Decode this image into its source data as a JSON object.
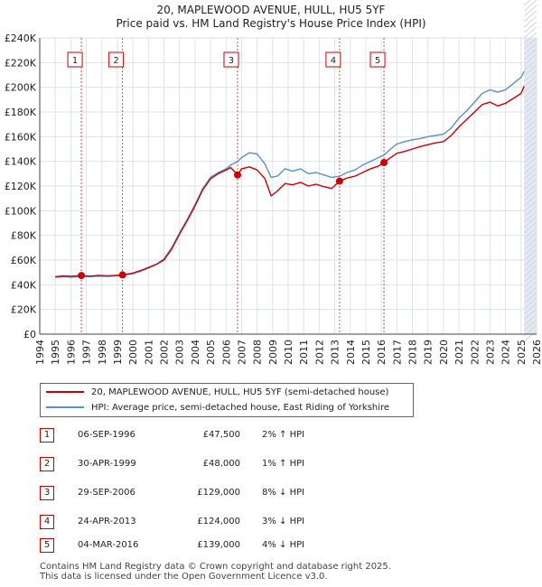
{
  "chart_data": {
    "type": "line",
    "title": "20, MAPLEWOOD AVENUE, HULL, HU5 5YF",
    "subtitle": "Price paid vs. HM Land Registry's House Price Index (HPI)",
    "xlim": [
      1994,
      2026
    ],
    "ylim": [
      0,
      240000
    ],
    "y_ticks": [
      {
        "value": 0,
        "label": "£0"
      },
      {
        "value": 20000,
        "label": "£20K"
      },
      {
        "value": 40000,
        "label": "£40K"
      },
      {
        "value": 60000,
        "label": "£60K"
      },
      {
        "value": 80000,
        "label": "£80K"
      },
      {
        "value": 100000,
        "label": "£100K"
      },
      {
        "value": 120000,
        "label": "£120K"
      },
      {
        "value": 140000,
        "label": "£140K"
      },
      {
        "value": 160000,
        "label": "£160K"
      },
      {
        "value": 180000,
        "label": "£180K"
      },
      {
        "value": 200000,
        "label": "£200K"
      },
      {
        "value": 220000,
        "label": "£220K"
      },
      {
        "value": 240000,
        "label": "£240K"
      }
    ],
    "x_ticks": [
      "1994",
      "1995",
      "1996",
      "1997",
      "1998",
      "1999",
      "2000",
      "2001",
      "2002",
      "2003",
      "2004",
      "2005",
      "2006",
      "2007",
      "2008",
      "2009",
      "2010",
      "2011",
      "2012",
      "2013",
      "2014",
      "2015",
      "2016",
      "2017",
      "2018",
      "2019",
      "2020",
      "2021",
      "2022",
      "2023",
      "2024",
      "2025",
      "2026"
    ],
    "grid": true,
    "series": [
      {
        "name": "20, MAPLEWOOD AVENUE, HULL, HU5 5YF (semi-detached house)",
        "color": "#cc0000",
        "points": [
          [
            1995.0,
            46500
          ],
          [
            1995.5,
            47200
          ],
          [
            1996.0,
            46800
          ],
          [
            1996.68,
            47500
          ],
          [
            1997.2,
            47000
          ],
          [
            1997.8,
            47600
          ],
          [
            1998.4,
            47300
          ],
          [
            1999.0,
            47700
          ],
          [
            1999.33,
            48000
          ],
          [
            2000.0,
            49500
          ],
          [
            2000.5,
            51500
          ],
          [
            2001.0,
            54000
          ],
          [
            2001.5,
            56500
          ],
          [
            2002.0,
            60000
          ],
          [
            2002.5,
            69000
          ],
          [
            2003.0,
            81000
          ],
          [
            2003.5,
            92000
          ],
          [
            2004.0,
            104000
          ],
          [
            2004.5,
            117000
          ],
          [
            2005.0,
            126000
          ],
          [
            2005.5,
            130000
          ],
          [
            2006.0,
            133000
          ],
          [
            2006.3,
            135000
          ],
          [
            2006.74,
            129000
          ],
          [
            2007.0,
            134000
          ],
          [
            2007.5,
            135500
          ],
          [
            2008.0,
            133000
          ],
          [
            2008.5,
            126000
          ],
          [
            2008.9,
            112000
          ],
          [
            2009.3,
            116000
          ],
          [
            2009.8,
            122000
          ],
          [
            2010.3,
            121000
          ],
          [
            2010.8,
            123000
          ],
          [
            2011.3,
            120000
          ],
          [
            2011.8,
            121500
          ],
          [
            2012.3,
            119500
          ],
          [
            2012.8,
            118000
          ],
          [
            2013.31,
            124000
          ],
          [
            2013.8,
            126500
          ],
          [
            2014.3,
            128000
          ],
          [
            2014.8,
            131000
          ],
          [
            2015.3,
            134000
          ],
          [
            2015.8,
            136000
          ],
          [
            2016.17,
            139000
          ],
          [
            2016.6,
            143000
          ],
          [
            2017.0,
            146500
          ],
          [
            2017.5,
            148000
          ],
          [
            2018.0,
            150000
          ],
          [
            2018.5,
            152000
          ],
          [
            2019.0,
            153500
          ],
          [
            2019.5,
            155000
          ],
          [
            2020.0,
            156000
          ],
          [
            2020.5,
            161000
          ],
          [
            2021.0,
            168000
          ],
          [
            2021.5,
            174000
          ],
          [
            2022.0,
            180000
          ],
          [
            2022.5,
            186000
          ],
          [
            2023.0,
            188000
          ],
          [
            2023.5,
            185000
          ],
          [
            2024.0,
            187000
          ],
          [
            2024.5,
            191000
          ],
          [
            2025.0,
            195000
          ],
          [
            2025.2,
            201000
          ]
        ]
      },
      {
        "name": "HPI: Average price, semi-detached house, East Riding of Yorkshire",
        "color": "#5b8fd0",
        "points": [
          [
            1995.0,
            46000
          ],
          [
            1995.5,
            46500
          ],
          [
            1996.0,
            46200
          ],
          [
            1996.68,
            46800
          ],
          [
            1997.2,
            46500
          ],
          [
            1997.8,
            47000
          ],
          [
            1998.4,
            46800
          ],
          [
            1999.0,
            47200
          ],
          [
            1999.33,
            47500
          ],
          [
            2000.0,
            49000
          ],
          [
            2000.5,
            51000
          ],
          [
            2001.0,
            53500
          ],
          [
            2001.5,
            56500
          ],
          [
            2002.0,
            61000
          ],
          [
            2002.5,
            70000
          ],
          [
            2003.0,
            82000
          ],
          [
            2003.5,
            93000
          ],
          [
            2004.0,
            105000
          ],
          [
            2004.5,
            118000
          ],
          [
            2005.0,
            127000
          ],
          [
            2005.5,
            131000
          ],
          [
            2006.0,
            134000
          ],
          [
            2006.3,
            137000
          ],
          [
            2006.74,
            140000
          ],
          [
            2007.0,
            143000
          ],
          [
            2007.5,
            147000
          ],
          [
            2008.0,
            146000
          ],
          [
            2008.5,
            138000
          ],
          [
            2008.9,
            127000
          ],
          [
            2009.3,
            128000
          ],
          [
            2009.8,
            134000
          ],
          [
            2010.3,
            132000
          ],
          [
            2010.8,
            134000
          ],
          [
            2011.3,
            130000
          ],
          [
            2011.8,
            131000
          ],
          [
            2012.3,
            129000
          ],
          [
            2012.8,
            127000
          ],
          [
            2013.31,
            128000
          ],
          [
            2013.8,
            131000
          ],
          [
            2014.3,
            133000
          ],
          [
            2014.8,
            137000
          ],
          [
            2015.3,
            140000
          ],
          [
            2015.8,
            143000
          ],
          [
            2016.17,
            145000
          ],
          [
            2016.6,
            150000
          ],
          [
            2017.0,
            154000
          ],
          [
            2017.5,
            156000
          ],
          [
            2018.0,
            157500
          ],
          [
            2018.5,
            158500
          ],
          [
            2019.0,
            160000
          ],
          [
            2019.5,
            161000
          ],
          [
            2020.0,
            162000
          ],
          [
            2020.5,
            167000
          ],
          [
            2021.0,
            175000
          ],
          [
            2021.5,
            181000
          ],
          [
            2022.0,
            188000
          ],
          [
            2022.5,
            195000
          ],
          [
            2023.0,
            198000
          ],
          [
            2023.5,
            196000
          ],
          [
            2024.0,
            198000
          ],
          [
            2024.5,
            203000
          ],
          [
            2025.0,
            208000
          ],
          [
            2025.2,
            213000
          ]
        ]
      }
    ],
    "sales": [
      {
        "n": "1",
        "x": 1996.68,
        "y": 47500,
        "date": "06-SEP-1996",
        "price": "£47,500",
        "hpi": "2% ↑ HPI"
      },
      {
        "n": "2",
        "x": 1999.33,
        "y": 48000,
        "date": "30-APR-1999",
        "price": "£48,000",
        "hpi": "1% ↑ HPI"
      },
      {
        "n": "3",
        "x": 2006.74,
        "y": 129000,
        "date": "29-SEP-2006",
        "price": "£129,000",
        "hpi": "8% ↓ HPI"
      },
      {
        "n": "4",
        "x": 2013.31,
        "y": 124000,
        "date": "24-APR-2013",
        "price": "£124,000",
        "hpi": "3% ↓ HPI"
      },
      {
        "n": "5",
        "x": 2016.17,
        "y": 139000,
        "date": "04-MAR-2016",
        "price": "£139,000",
        "hpi": "4% ↓ HPI"
      }
    ]
  },
  "footer": {
    "line1": "Contains HM Land Registry data © Crown copyright and database right 2025.",
    "line2": "This data is licensed under the Open Government Licence v3.0."
  },
  "colors": {
    "price_line": "#cc0000",
    "hpi_line": "#5b8fd0",
    "future_shade": "#e4e8f0",
    "grid": "#dde2ea"
  }
}
